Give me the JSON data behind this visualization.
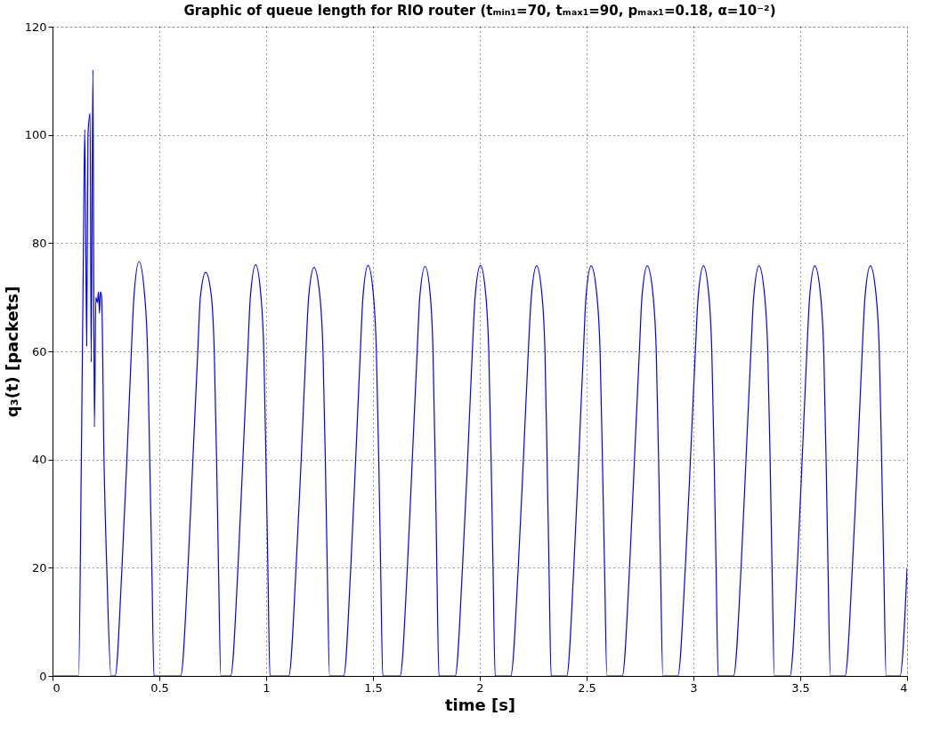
{
  "chart_data": {
    "type": "line",
    "title": "Graphic of queue length for RIO router (tₘᵢₙ₁=70, tₘₐₓ₁=90, pₘₐₓ₁=0.18, α=10⁻²)",
    "xlabel": "time [s]",
    "ylabel": "q₃(t) [packets]",
    "series": [
      {
        "color": "#0000ff",
        "x": [
          0,
          0.122,
          0.135,
          0.145,
          0.151,
          0.16,
          0.166,
          0.176,
          0.181,
          0.189,
          0.196,
          0.203,
          0.21,
          0.215,
          0.22,
          0.224,
          0.23,
          0.241,
          0.254,
          0.274,
          0.293,
          0.325,
          0.348,
          0.369,
          0.381,
          0.405,
          0.432,
          0.445,
          0.455,
          0.465,
          0.475,
          0.6,
          0.634,
          0.657,
          0.68,
          0.692,
          0.717,
          0.744,
          0.757,
          0.768,
          0.777,
          0.788,
          0.834,
          0.868,
          0.891,
          0.914,
          0.926,
          0.951,
          0.976,
          0.989,
          0.999,
          1.008,
          1.018,
          1.106,
          1.14,
          1.164,
          1.186,
          1.199,
          1.224,
          1.252,
          1.266,
          1.277,
          1.286,
          1.297,
          1.363,
          1.396,
          1.419,
          1.441,
          1.453,
          1.477,
          1.503,
          1.516,
          1.527,
          1.536,
          1.546,
          1.627,
          1.661,
          1.684,
          1.707,
          1.719,
          1.744,
          1.769,
          1.781,
          1.791,
          1.799,
          1.809,
          1.885,
          1.919,
          1.943,
          1.965,
          1.978,
          2.003,
          2.029,
          2.042,
          2.053,
          2.062,
          2.072,
          2.145,
          2.18,
          2.204,
          2.227,
          2.241,
          2.266,
          2.292,
          2.305,
          2.315,
          2.324,
          2.334,
          2.407,
          2.44,
          2.463,
          2.485,
          2.497,
          2.521,
          2.549,
          2.563,
          2.574,
          2.584,
          2.595,
          2.667,
          2.701,
          2.724,
          2.747,
          2.759,
          2.784,
          2.812,
          2.826,
          2.837,
          2.846,
          2.857,
          2.927,
          2.962,
          2.986,
          3.009,
          3.022,
          3.047,
          3.073,
          3.086,
          3.097,
          3.106,
          3.116,
          3.188,
          3.223,
          3.246,
          3.269,
          3.282,
          3.307,
          3.334,
          3.348,
          3.359,
          3.368,
          3.379,
          3.452,
          3.486,
          3.509,
          3.531,
          3.544,
          3.568,
          3.596,
          3.61,
          3.621,
          3.63,
          3.641,
          3.71,
          3.744,
          3.768,
          3.79,
          3.803,
          3.828,
          3.856,
          3.87,
          3.881,
          3.891,
          3.902,
          3.967,
          4.0
        ],
        "values": [
          0,
          0,
          40,
          80,
          101,
          61,
          100,
          104,
          58,
          112,
          46,
          70,
          69,
          71,
          67,
          71,
          70,
          40,
          20,
          0,
          0,
          20,
          40,
          60,
          70,
          76.6,
          70,
          60,
          40,
          20,
          0,
          0,
          20,
          40,
          60,
          70,
          74.6,
          70,
          60,
          40,
          20,
          0,
          0,
          20,
          40,
          60,
          70,
          76,
          70,
          60,
          40,
          20,
          0,
          0,
          20,
          40,
          60,
          70,
          75.5,
          70,
          60,
          40,
          20,
          0,
          0,
          20,
          40,
          60,
          70,
          75.9,
          70,
          60,
          40,
          20,
          0,
          0,
          20,
          40,
          60,
          70,
          75.7,
          70,
          60,
          40,
          20,
          0,
          0,
          20,
          40,
          60,
          70,
          75.9,
          70,
          60,
          40,
          20,
          0,
          0,
          20,
          40,
          60,
          70,
          75.8,
          70,
          60,
          40,
          20,
          0,
          0,
          20,
          40,
          60,
          70,
          75.8,
          70,
          60,
          40,
          20,
          0,
          0,
          20,
          40,
          60,
          70,
          75.8,
          70,
          60,
          40,
          20,
          0,
          0,
          20,
          40,
          60,
          70,
          75.8,
          70,
          60,
          40,
          20,
          0,
          0,
          20,
          40,
          60,
          70,
          75.8,
          70,
          60,
          40,
          20,
          0,
          0,
          20,
          40,
          60,
          70,
          75.8,
          70,
          60,
          40,
          20,
          0,
          0,
          20,
          40,
          60,
          70,
          75.8,
          70,
          60,
          40,
          20,
          0,
          0,
          20
        ]
      }
    ],
    "xlim": [
      0,
      4
    ],
    "xticks": [
      0,
      0.5,
      1,
      1.5,
      2,
      2.5,
      3,
      3.5,
      4
    ],
    "ylim": [
      0,
      120
    ],
    "yticks": [
      0,
      20,
      40,
      60,
      80,
      100,
      120
    ],
    "grid": true,
    "line_style": "solid"
  }
}
